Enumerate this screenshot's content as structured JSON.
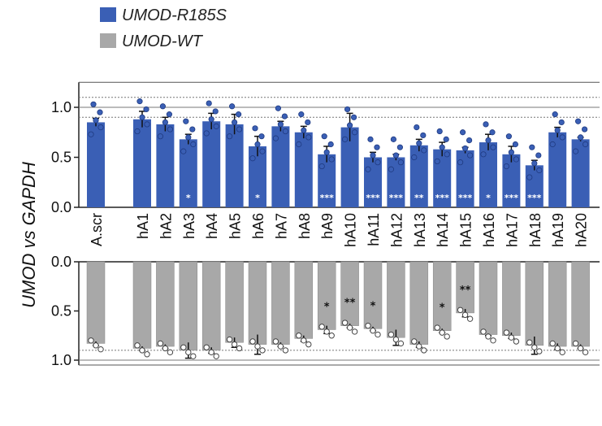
{
  "chart_data": {
    "type": "bar",
    "ylabel": "UMOD vs GAPDH",
    "categories": [
      "A.scr",
      "hA1",
      "hA2",
      "hA3",
      "hA4",
      "hA5",
      "hA6",
      "hA7",
      "hA8",
      "hA9",
      "hA10",
      "hA11",
      "hA12",
      "hA13",
      "hA14",
      "hA15",
      "hA16",
      "hA17",
      "hA18",
      "hA19",
      "hA20"
    ],
    "legend": [
      {
        "name": "UMOD-R185S",
        "color": "#3a5fb5"
      },
      {
        "name": "UMOD-WT",
        "color": "#a8a8a8"
      }
    ],
    "series": [
      {
        "name": "UMOD-R185S",
        "panel": "top",
        "color": "#3a5fb5",
        "ylim": [
          0,
          1.25
        ],
        "yticks": [
          "0.0",
          "0.5",
          "1.0"
        ],
        "values": [
          0.85,
          0.88,
          0.83,
          0.68,
          0.86,
          0.83,
          0.61,
          0.81,
          0.75,
          0.53,
          0.8,
          0.5,
          0.5,
          0.62,
          0.58,
          0.57,
          0.65,
          0.53,
          0.42,
          0.75,
          0.68
        ],
        "errors": [
          0.04,
          0.08,
          0.07,
          0.05,
          0.08,
          0.1,
          0.1,
          0.05,
          0.06,
          0.08,
          0.14,
          0.05,
          0.03,
          0.06,
          0.07,
          0.03,
          0.08,
          0.08,
          0.05,
          0.05,
          0.02
        ],
        "significance": [
          "",
          "",
          "",
          "*",
          "",
          "",
          "*",
          "",
          "",
          "***",
          "",
          "***",
          "***",
          "**",
          "***",
          "***",
          "*",
          "***",
          "***",
          "",
          ""
        ]
      },
      {
        "name": "UMOD-WT",
        "panel": "bottom",
        "color": "#a8a8a8",
        "ylim": [
          0,
          1.05
        ],
        "inverted": true,
        "yticks": [
          "0.0",
          "0.5",
          "1.0"
        ],
        "values": [
          0.83,
          0.88,
          0.86,
          0.9,
          0.9,
          0.82,
          0.84,
          0.84,
          0.78,
          0.69,
          0.65,
          0.68,
          0.77,
          0.84,
          0.7,
          0.52,
          0.74,
          0.75,
          0.85,
          0.86,
          0.86
        ],
        "errors": [
          0.02,
          0.02,
          0.02,
          0.08,
          0.03,
          0.05,
          0.1,
          0.02,
          0.03,
          0.04,
          0.02,
          0.02,
          0.08,
          0.03,
          0.02,
          0.04,
          0.01,
          0.03,
          0.09,
          0.03,
          0.02
        ],
        "significance": [
          "",
          "",
          "",
          "",
          "",
          "",
          "",
          "",
          "",
          "*",
          "**",
          "*",
          "",
          "",
          "*",
          "**",
          "",
          "",
          "",
          "",
          ""
        ]
      }
    ],
    "reference_lines": [
      0.9,
      1.0,
      1.1
    ]
  }
}
